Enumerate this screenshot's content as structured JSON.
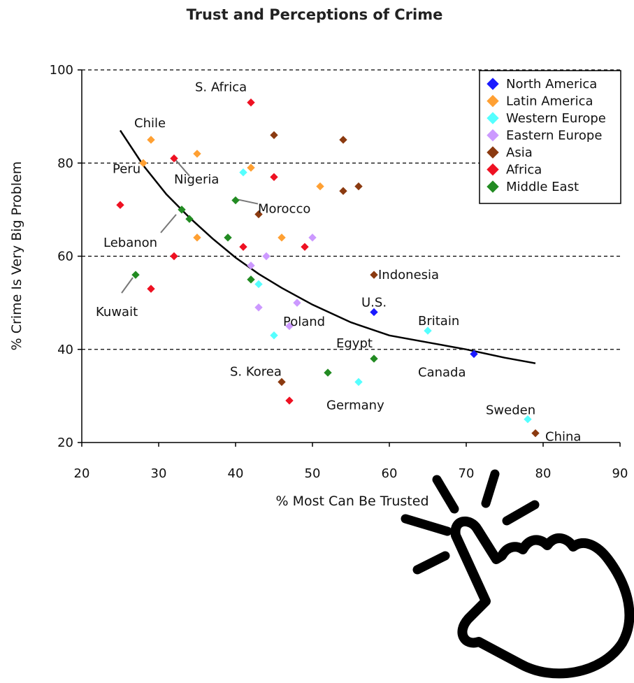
{
  "chart_data": {
    "type": "scatter",
    "title": "Trust and Perceptions of Crime",
    "xlabel": "% Most Can Be Trusted",
    "ylabel": "% Crime Is Very Big Problem",
    "xlim": [
      20,
      90
    ],
    "ylim": [
      20,
      100
    ],
    "xticks": [
      20,
      30,
      40,
      50,
      60,
      70,
      80,
      90
    ],
    "yticks": [
      20,
      40,
      60,
      80,
      100
    ],
    "grid": "horizontal-dashed",
    "legend_position": "top-right",
    "series": [
      {
        "name": "North America",
        "color": "#1a1aff",
        "points": [
          [
            58,
            48
          ],
          [
            71,
            39
          ]
        ]
      },
      {
        "name": "Latin America",
        "color": "#ffa033",
        "points": [
          [
            29,
            85
          ],
          [
            28,
            80
          ],
          [
            35,
            82
          ],
          [
            42,
            79
          ],
          [
            51,
            75
          ],
          [
            35,
            64
          ],
          [
            46,
            64
          ]
        ]
      },
      {
        "name": "Western Europe",
        "color": "#55ffff",
        "points": [
          [
            41,
            78
          ],
          [
            43,
            54
          ],
          [
            45,
            43
          ],
          [
            56,
            33
          ],
          [
            65,
            44
          ],
          [
            78,
            25
          ]
        ]
      },
      {
        "name": "Eastern Europe",
        "color": "#cc99ff",
        "points": [
          [
            50,
            64
          ],
          [
            44,
            60
          ],
          [
            42,
            58
          ],
          [
            48,
            50
          ],
          [
            43,
            49
          ],
          [
            47,
            45
          ]
        ]
      },
      {
        "name": "Asia",
        "color": "#8b3a10",
        "points": [
          [
            45,
            86
          ],
          [
            54,
            85
          ],
          [
            54,
            74
          ],
          [
            56,
            75
          ],
          [
            43,
            69
          ],
          [
            58,
            56
          ],
          [
            46,
            33
          ],
          [
            79,
            22
          ]
        ]
      },
      {
        "name": "Africa",
        "color": "#ee1122",
        "points": [
          [
            42,
            93
          ],
          [
            32,
            81
          ],
          [
            45,
            77
          ],
          [
            25,
            71
          ],
          [
            41,
            62
          ],
          [
            49,
            62
          ],
          [
            32,
            60
          ],
          [
            29,
            53
          ],
          [
            47,
            29
          ]
        ]
      },
      {
        "name": "Middle East",
        "color": "#228b22",
        "points": [
          [
            40,
            72
          ],
          [
            33,
            70
          ],
          [
            34,
            68
          ],
          [
            39,
            64
          ],
          [
            27,
            56
          ],
          [
            42,
            55
          ],
          [
            52,
            35
          ],
          [
            58,
            38
          ]
        ]
      }
    ],
    "trendline": {
      "x": [
        25,
        28,
        31,
        34,
        37,
        40,
        43,
        46,
        50,
        55,
        60,
        65,
        70,
        75,
        79
      ],
      "y": [
        87,
        79.5,
        73.3,
        68.3,
        63.8,
        59.7,
        56.2,
        53.2,
        49.6,
        45.8,
        43.0,
        41.5,
        40.0,
        38.2,
        37
      ]
    },
    "annotations": [
      {
        "text": "S. Africa",
        "x": 42,
        "y": 93
      },
      {
        "text": "Chile",
        "x": 29,
        "y": 85
      },
      {
        "text": "Peru",
        "x": 28,
        "y": 80
      },
      {
        "text": "Nigeria",
        "x": 32,
        "y": 81
      },
      {
        "text": "Morocco",
        "x": 40,
        "y": 72
      },
      {
        "text": "Lebanon",
        "x": 33,
        "y": 70
      },
      {
        "text": "Kuwait",
        "x": 27,
        "y": 56
      },
      {
        "text": "Indonesia",
        "x": 58,
        "y": 56
      },
      {
        "text": "U.S.",
        "x": 58,
        "y": 48
      },
      {
        "text": "Poland",
        "x": 48,
        "y": 50
      },
      {
        "text": "Britain",
        "x": 65,
        "y": 44
      },
      {
        "text": "Egypt",
        "x": 58,
        "y": 38
      },
      {
        "text": "Canada",
        "x": 71,
        "y": 39
      },
      {
        "text": "S. Korea",
        "x": 46,
        "y": 33
      },
      {
        "text": "Germany",
        "x": 56,
        "y": 33
      },
      {
        "text": "Sweden",
        "x": 78,
        "y": 25
      },
      {
        "text": "China",
        "x": 79,
        "y": 22
      }
    ]
  },
  "overlay": {
    "icon": "pointing-hand-click-icon"
  }
}
